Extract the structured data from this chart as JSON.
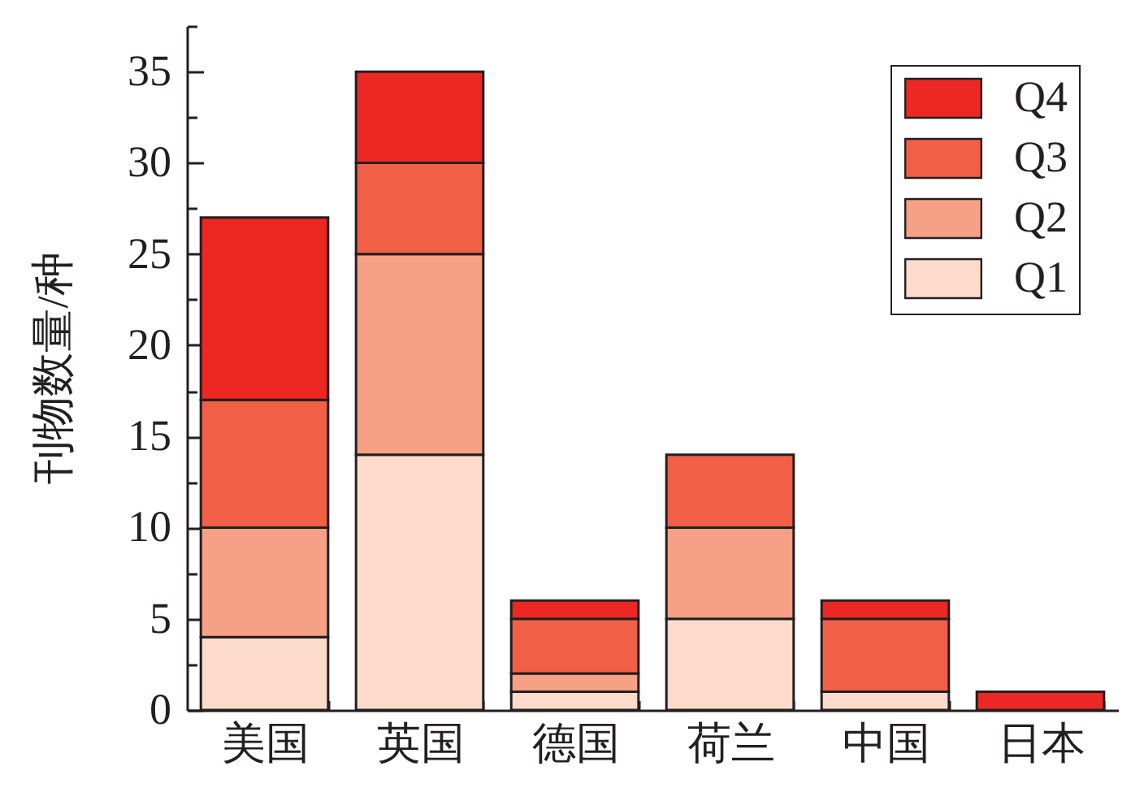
{
  "chart_data": {
    "type": "bar",
    "stacked": true,
    "ylabel": "刊物数量/种",
    "categories": [
      "美国",
      "英国",
      "德国",
      "荷兰",
      "中国",
      "日本"
    ],
    "series": [
      {
        "name": "Q1",
        "color": "#fcdbcd",
        "values": [
          4,
          14,
          1,
          5,
          1,
          null
        ]
      },
      {
        "name": "Q2",
        "color": "#f6a085",
        "values": [
          6,
          11,
          1,
          5,
          null,
          null
        ]
      },
      {
        "name": "Q3",
        "color": "#f15f46",
        "values": [
          7,
          5,
          3,
          4,
          4,
          null
        ]
      },
      {
        "name": "Q4",
        "color": "#ed2723",
        "values": [
          10,
          5,
          1,
          null,
          1,
          1
        ]
      }
    ],
    "ylim": [
      0,
      37.5
    ],
    "yticks": [
      0,
      {
        "value": 2.5,
        "label": null
      },
      5,
      {
        "value": 7.5,
        "label": null
      },
      10,
      {
        "value": 12.5,
        "label": null
      },
      15,
      {
        "value": 17.5,
        "label": null
      },
      20,
      {
        "value": 22.5,
        "label": null
      },
      25,
      {
        "value": 27.5,
        "label": null
      },
      30,
      {
        "value": 32.5,
        "label": null
      },
      35,
      {
        "value": 37.5,
        "label": null
      }
    ],
    "legend": "top right"
  }
}
